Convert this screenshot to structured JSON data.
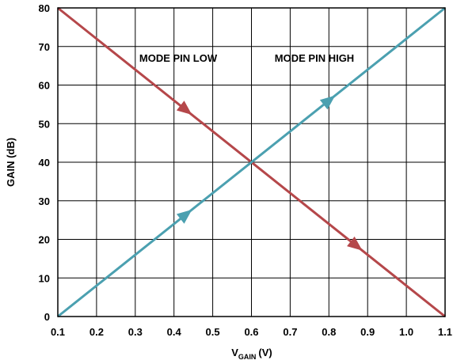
{
  "chart_data": {
    "type": "line",
    "xlabel": "V",
    "xlabel_subscript": "GAIN",
    "xlabel_unit": "(V)",
    "ylabel": "GAIN (dB)",
    "xlim": [
      0.1,
      1.1
    ],
    "ylim": [
      0,
      80
    ],
    "x_ticks": [
      "0.1",
      "0.2",
      "0.3",
      "0.4",
      "0.5",
      "0.6",
      "0.7",
      "0.8",
      "0.9",
      "1.0",
      "1.1"
    ],
    "y_ticks": [
      "0",
      "10",
      "20",
      "30",
      "40",
      "50",
      "60",
      "70",
      "80"
    ],
    "grid": true,
    "annotations": [
      "MODE PIN LOW",
      "MODE PIN HIGH"
    ],
    "series": [
      {
        "label": "MODE PIN LOW",
        "color": "#b5474a",
        "x": [
          0.1,
          1.1
        ],
        "y": [
          80,
          0
        ],
        "arrows": [
          0.43,
          0.87
        ]
      },
      {
        "label": "MODE PIN HIGH",
        "color": "#4ba0b0",
        "x": [
          0.1,
          1.1
        ],
        "y": [
          0,
          80
        ],
        "arrows": [
          0.43,
          0.8
        ]
      }
    ]
  }
}
